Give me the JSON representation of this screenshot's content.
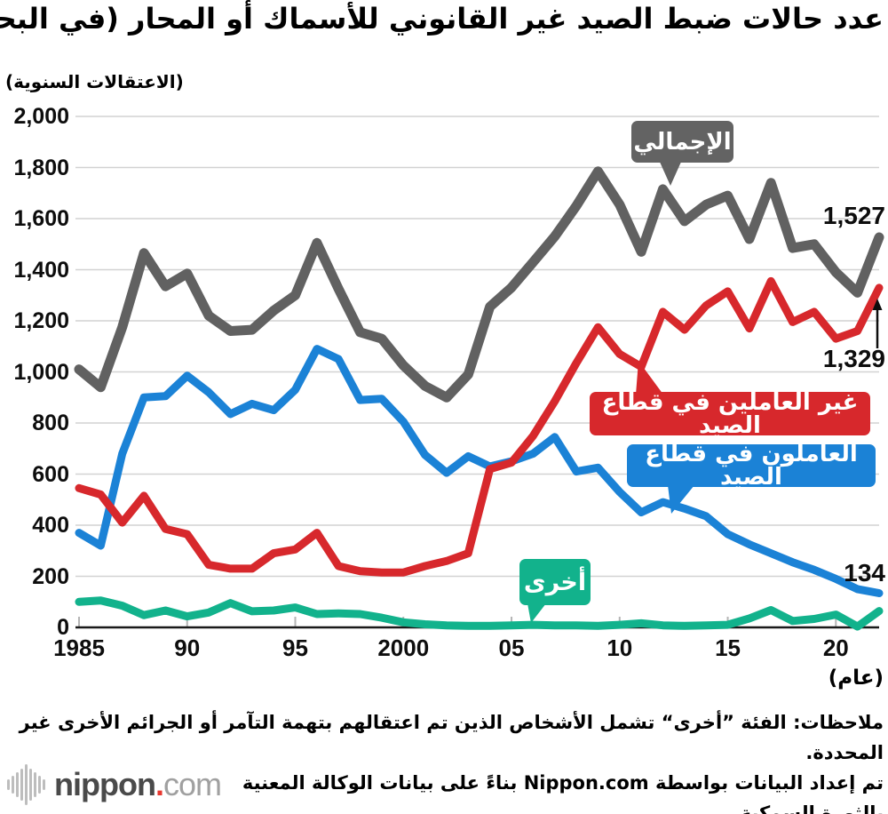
{
  "title": "عدد حالات ضبط الصيد غير القانوني للأسماك أو المحار (في البحر)",
  "y_axis_title": "(الاعتقالات السنوية)",
  "x_axis_title": "(عام)",
  "colors": {
    "total": "#616161",
    "non_workers": "#d7282c",
    "workers": "#1b82d6",
    "other": "#12b28c",
    "grid": "#d2d2d2",
    "axis": "#1a1a1a",
    "tick": "#b5b5b5",
    "annotation_text": "#0d0d0d",
    "logo_red": "#e8382f"
  },
  "y_ticks": [
    {
      "value": 2000,
      "label": "2,000"
    },
    {
      "value": 1800,
      "label": "1,800"
    },
    {
      "value": 1600,
      "label": "1,600"
    },
    {
      "value": 1400,
      "label": "1,400"
    },
    {
      "value": 1200,
      "label": "1,200"
    },
    {
      "value": 1000,
      "label": "1,000"
    },
    {
      "value": 800,
      "label": "800"
    },
    {
      "value": 600,
      "label": "600"
    },
    {
      "value": 400,
      "label": "400"
    },
    {
      "value": 200,
      "label": "200"
    },
    {
      "value": 0,
      "label": "0"
    }
  ],
  "x_ticks": [
    {
      "year": 1985,
      "label": "1985"
    },
    {
      "year": 1990,
      "label": "90"
    },
    {
      "year": 1995,
      "label": "95"
    },
    {
      "year": 2000,
      "label": "2000"
    },
    {
      "year": 2005,
      "label": "05"
    },
    {
      "year": 2010,
      "label": "10"
    },
    {
      "year": 2015,
      "label": "15"
    },
    {
      "year": 2020,
      "label": "20"
    }
  ],
  "chart_data": {
    "type": "line",
    "title": "عدد حالات ضبط الصيد غير القانوني للأسماك أو المحار (في البحر)",
    "ylabel": "(الاعتقالات السنوية)",
    "xlabel": "(عام)",
    "ylim": [
      0,
      2000
    ],
    "xlim": [
      1985,
      2022
    ],
    "grid": true,
    "x": [
      1985,
      1986,
      1987,
      1988,
      1989,
      1990,
      1991,
      1992,
      1993,
      1994,
      1995,
      1996,
      1997,
      1998,
      1999,
      2000,
      2001,
      2002,
      2003,
      2004,
      2005,
      2006,
      2007,
      2008,
      2009,
      2010,
      2011,
      2012,
      2013,
      2014,
      2015,
      2016,
      2017,
      2018,
      2019,
      2020,
      2021,
      2022
    ],
    "series": [
      {
        "key": "other",
        "name": "أخرى",
        "color": "#12b28c",
        "stroke_width": 9,
        "values": [
          100,
          105,
          85,
          48,
          66,
          43,
          58,
          95,
          63,
          66,
          78,
          52,
          55,
          52,
          38,
          20,
          12,
          8,
          6,
          6,
          8,
          10,
          8,
          8,
          6,
          10,
          16,
          8,
          6,
          8,
          10,
          35,
          68,
          25,
          33,
          50,
          3,
          64
        ]
      },
      {
        "key": "workers",
        "name": "العاملون في قطاع الصيد",
        "color": "#1b82d6",
        "stroke_width": 9,
        "values": [
          370,
          320,
          680,
          900,
          905,
          985,
          920,
          835,
          875,
          850,
          930,
          1090,
          1050,
          890,
          895,
          805,
          675,
          605,
          670,
          630,
          650,
          680,
          745,
          610,
          625,
          530,
          450,
          490,
          465,
          435,
          365,
          325,
          290,
          255,
          225,
          190,
          150,
          134
        ]
      },
      {
        "key": "non_workers",
        "name": "غير العاملين في قطاع الصيد",
        "color": "#d7282c",
        "stroke_width": 9,
        "values": [
          545,
          520,
          410,
          515,
          385,
          365,
          245,
          230,
          230,
          290,
          305,
          370,
          240,
          220,
          215,
          215,
          240,
          260,
          290,
          620,
          645,
          750,
          885,
          1035,
          1175,
          1070,
          1020,
          1235,
          1165,
          1260,
          1315,
          1170,
          1355,
          1195,
          1235,
          1130,
          1160,
          1329
        ]
      },
      {
        "key": "total",
        "name": "الإجمالي",
        "color": "#616161",
        "stroke_width": 11,
        "values": [
          1010,
          940,
          1175,
          1465,
          1335,
          1385,
          1220,
          1160,
          1165,
          1240,
          1300,
          1505,
          1325,
          1155,
          1130,
          1025,
          945,
          900,
          990,
          1255,
          1330,
          1430,
          1530,
          1650,
          1785,
          1655,
          1470,
          1715,
          1590,
          1655,
          1690,
          1520,
          1740,
          1485,
          1500,
          1390,
          1310,
          1527
        ]
      }
    ],
    "legend_position": "callouts-on-chart",
    "annotations": [
      {
        "key": "total_end",
        "text": "1,527",
        "series": "total",
        "year": 2022
      },
      {
        "key": "non_workers_end",
        "text": "1,329",
        "series": "non_workers",
        "year": 2022,
        "arrow": true
      },
      {
        "key": "workers_end",
        "text": "134",
        "series": "workers",
        "year": 2022
      }
    ]
  },
  "callouts": {
    "total": {
      "label": "الإجمالي"
    },
    "non_workers": {
      "label": "غير العاملين في قطاع الصيد"
    },
    "workers": {
      "label": "العاملون في قطاع الصيد"
    },
    "other": {
      "label": "أخرى"
    }
  },
  "end_labels": {
    "total": "1,527",
    "non_workers": "1,329",
    "workers": "134"
  },
  "notes": {
    "line1": "ملاحظات: الفئة ”أخرى“ تشمل الأشخاص الذين تم اعتقالهم بتهمة التآمر أو الجرائم الأخرى غير المحددة.",
    "line2": "تم إعداد البيانات بواسطة Nippon.com بناءً على بيانات الوكالة المعنية",
    "line3": "بالثورة السمكية"
  },
  "logo": {
    "name": "nippon",
    "dot": ".",
    "tld": "com"
  }
}
